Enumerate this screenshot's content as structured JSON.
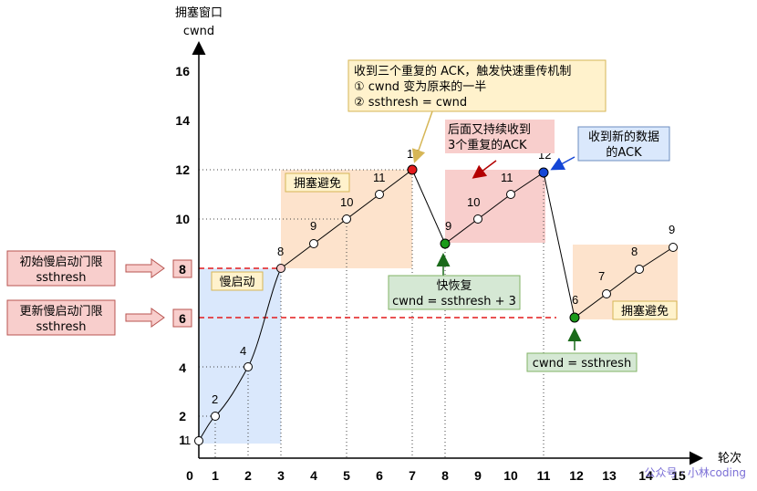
{
  "axes": {
    "y_title": "拥塞窗口",
    "y_unit": "cwnd",
    "x_title": "轮次",
    "x_ticks": [
      "0",
      "1",
      "2",
      "3",
      "4",
      "5",
      "6",
      "7",
      "8",
      "9",
      "10",
      "11",
      "12",
      "13",
      "14",
      "15"
    ],
    "y_ticks": [
      "1",
      "2",
      "4",
      "6",
      "8",
      "10",
      "12",
      "14",
      "16"
    ]
  },
  "points": {
    "p0": "1",
    "p1": "2",
    "p2": "4",
    "p3": "8",
    "p4": "9",
    "p5": "10",
    "p6": "11",
    "p7": "12",
    "p8": "9",
    "p9": "10",
    "p10": "11",
    "p11": "12",
    "p12": "6",
    "p13": "7",
    "p14": "8",
    "p15": "9"
  },
  "labels": {
    "slow_start": "慢启动",
    "congestion_avoid_1": "拥塞避免",
    "congestion_avoid_2": "拥塞避免",
    "initial_threshold": [
      "初始慢启动门限",
      "ssthresh"
    ],
    "updated_threshold": [
      "更新慢启动门限",
      "ssthresh"
    ],
    "threshold_8": "8",
    "threshold_6": "6",
    "three_dup_ack": [
      "收到三个重复的 ACK，触发快速重传机制",
      "① cwnd 变为原来的一半",
      "② ssthresh = cwnd"
    ],
    "then_three_dup": [
      "后面又持续收到",
      "3个重复的ACK"
    ],
    "new_data_ack": [
      "收到新的数据",
      "的ACK"
    ],
    "fast_recovery": [
      "快恢复",
      "cwnd = ssthresh + 3"
    ],
    "cwnd_eq": "cwnd = ssthresh",
    "watermark": "公众号 · 小林coding"
  },
  "colors": {
    "slow_start_fill": "#dae8fc",
    "avoid_fill": "#fde3cc",
    "dup_fill": "#f8cecc",
    "threshold_line": "#e31a1c",
    "red_dot": "#e31a1c",
    "green_dot": "#1a9a1a",
    "blue_dot": "#1446d6"
  }
}
